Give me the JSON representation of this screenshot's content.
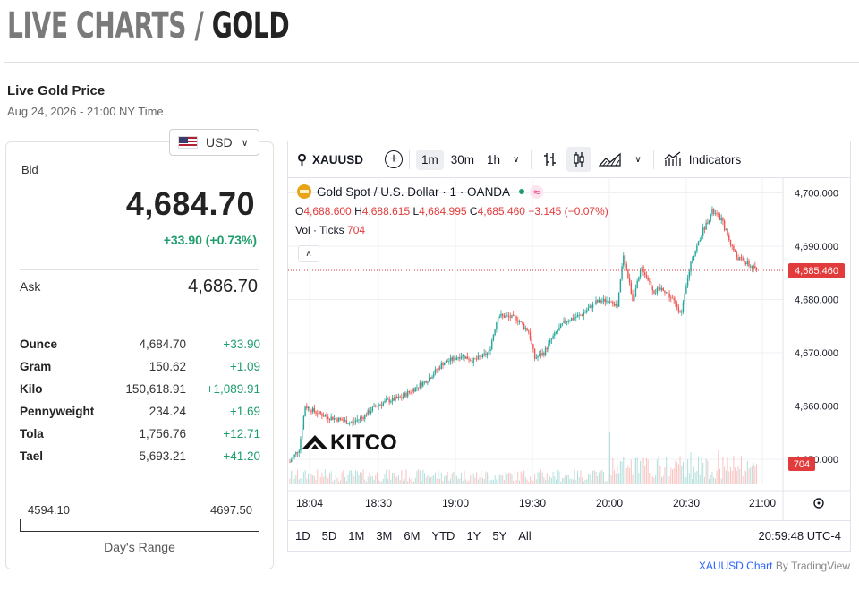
{
  "header": {
    "title_prefix": "LIVE CHARTS / ",
    "title_metal": "GOLD"
  },
  "price_panel": {
    "title": "Live Gold Price",
    "timestamp": "Aug 24, 2026 - 21:00 NY Time",
    "currency": "USD",
    "bid_label": "Bid",
    "bid_value": "4,684.70",
    "bid_change": "+33.90 (+0.73%)",
    "ask_label": "Ask",
    "ask_value": "4,686.70",
    "units": [
      {
        "name": "Ounce",
        "price": "4,684.70",
        "change": "+33.90"
      },
      {
        "name": "Gram",
        "price": "150.62",
        "change": "+1.09"
      },
      {
        "name": "Kilo",
        "price": "150,618.91",
        "change": "+1,089.91"
      },
      {
        "name": "Pennyweight",
        "price": "234.24",
        "change": "+1.69"
      },
      {
        "name": "Tola",
        "price": "1,756.76",
        "change": "+12.71"
      },
      {
        "name": "Tael",
        "price": "5,693.21",
        "change": "+41.20"
      }
    ],
    "day_range_low": "4594.10",
    "day_range_high": "4697.50",
    "day_range_label": "Day's Range"
  },
  "chart_toolbar": {
    "symbol": "XAUUSD",
    "intervals": [
      "1m",
      "30m",
      "1h"
    ],
    "active_interval": "1m",
    "indicators_label": "Indicators"
  },
  "chart_legend": {
    "instrument": "Gold Spot / U.S. Dollar · 1 · OANDA",
    "o_label": "O",
    "o_value": "4,688.600",
    "h_label": "H",
    "h_value": "4,688.615",
    "l_label": "L",
    "l_value": "4,684.995",
    "c_label": "C",
    "c_value": "4,685.460",
    "change": "−3.145 (−0.07%)",
    "vol_label": "Vol · Ticks",
    "vol_value": "704"
  },
  "watermark": "KITCO",
  "colors": {
    "up": "#26a69a",
    "down": "#ef5350",
    "accent_green": "#1f9d6d",
    "last_price": "#e23b3b"
  },
  "chart_data": {
    "type": "candlestick",
    "x_ticks": [
      "18:04",
      "18:30",
      "19:00",
      "19:30",
      "20:00",
      "20:30",
      "21:00"
    ],
    "y_ticks": [
      "4,700.000",
      "4,690.000",
      "4,680.000",
      "4,670.000",
      "4,660.000",
      "4,650.000"
    ],
    "ylim": [
      4646,
      4702
    ],
    "last_price": "4,685.460",
    "last_volume": "704",
    "price_path": [
      [
        0,
        4649.5
      ],
      [
        6,
        4652
      ],
      [
        10,
        4660
      ],
      [
        16,
        4659
      ],
      [
        24,
        4658
      ],
      [
        32,
        4657.5
      ],
      [
        40,
        4656.8
      ],
      [
        48,
        4658
      ],
      [
        56,
        4660
      ],
      [
        64,
        4661
      ],
      [
        72,
        4661.5
      ],
      [
        80,
        4663
      ],
      [
        90,
        4665
      ],
      [
        100,
        4668
      ],
      [
        112,
        4669.5
      ],
      [
        120,
        4668.5
      ],
      [
        130,
        4670
      ],
      [
        136,
        4677
      ],
      [
        148,
        4676.5
      ],
      [
        156,
        4674
      ],
      [
        160,
        4669
      ],
      [
        166,
        4670
      ],
      [
        172,
        4673
      ],
      [
        180,
        4676
      ],
      [
        190,
        4677
      ],
      [
        200,
        4679.5
      ],
      [
        210,
        4680
      ],
      [
        214,
        4678.5
      ],
      [
        218,
        4688.5
      ],
      [
        224,
        4680
      ],
      [
        230,
        4686
      ],
      [
        238,
        4681.5
      ],
      [
        244,
        4682
      ],
      [
        250,
        4680
      ],
      [
        256,
        4677.5
      ],
      [
        262,
        4687
      ],
      [
        270,
        4693
      ],
      [
        276,
        4696.5
      ],
      [
        282,
        4695
      ],
      [
        288,
        4690.5
      ],
      [
        292,
        4688
      ],
      [
        300,
        4686.5
      ],
      [
        305,
        4685.46
      ]
    ]
  },
  "range_buttons": [
    "1D",
    "5D",
    "1M",
    "3M",
    "6M",
    "YTD",
    "1Y",
    "5Y",
    "All"
  ],
  "chart_time": "20:59:48 UTC-4",
  "attribution": {
    "link": "XAUUSD Chart",
    "by": " By TradingView"
  }
}
